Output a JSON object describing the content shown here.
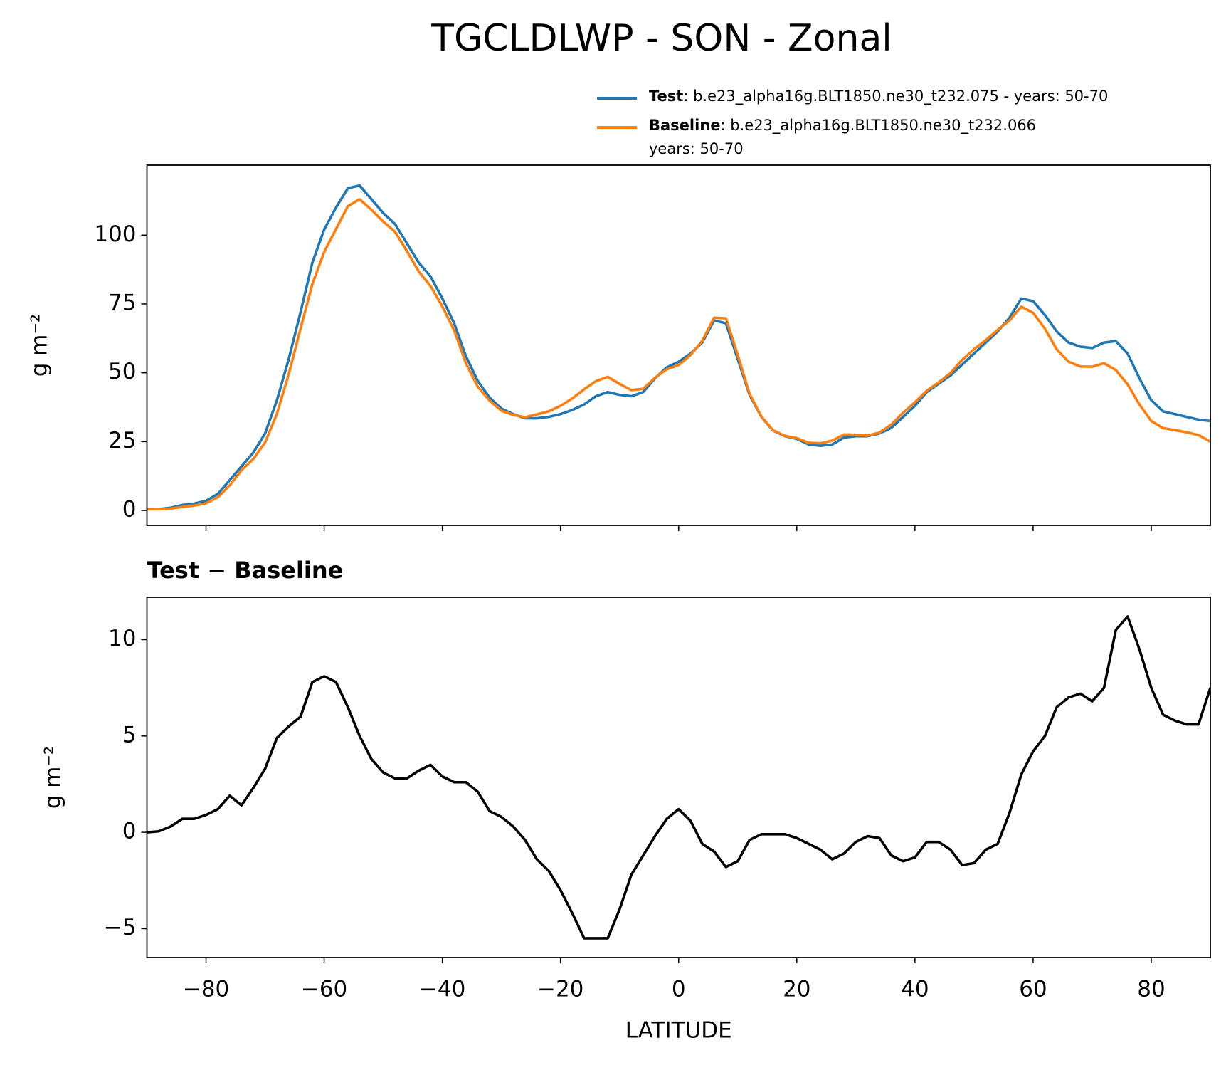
{
  "chart_data": [
    {
      "type": "line",
      "title": "TGCLDLWP - SON - Zonal",
      "ylabel": "g m⁻²",
      "x": [
        -90,
        -88,
        -86,
        -84,
        -82,
        -80,
        -78,
        -76,
        -74,
        -72,
        -70,
        -68,
        -66,
        -64,
        -62,
        -60,
        -58,
        -56,
        -54,
        -52,
        -50,
        -48,
        -46,
        -44,
        -42,
        -40,
        -38,
        -36,
        -34,
        -32,
        -30,
        -28,
        -26,
        -24,
        -22,
        -20,
        -18,
        -16,
        -14,
        -12,
        -10,
        -8,
        -6,
        -4,
        -2,
        0,
        2,
        4,
        6,
        8,
        10,
        12,
        14,
        16,
        18,
        20,
        22,
        24,
        26,
        28,
        30,
        32,
        34,
        36,
        38,
        40,
        42,
        44,
        46,
        48,
        50,
        52,
        54,
        56,
        58,
        60,
        62,
        64,
        66,
        68,
        70,
        72,
        74,
        76,
        78,
        80,
        82,
        84,
        86,
        88,
        90
      ],
      "series": [
        {
          "name": "Test",
          "legend_text": [
            ": b.e23_alpha16g.BLT1850.ne30_t232.075 - years: 50-70"
          ],
          "color": "#1f77b4",
          "values": [
            0.5,
            0.5,
            1,
            2,
            2.5,
            3.5,
            6,
            11,
            16,
            21,
            28,
            40,
            55,
            72,
            90,
            102,
            110,
            117,
            118,
            113,
            108,
            104,
            97,
            90,
            85,
            77,
            68,
            56,
            47,
            41,
            37,
            35,
            33.5,
            33.5,
            34,
            35,
            36.5,
            38.5,
            41.5,
            43,
            42,
            41.5,
            43,
            48,
            52,
            54,
            57,
            61,
            69,
            68,
            55,
            42,
            34,
            29,
            27,
            26,
            24,
            23.5,
            24,
            26.5,
            27,
            27,
            28,
            30,
            34,
            38,
            43,
            46,
            49,
            53,
            57,
            61,
            65,
            70,
            77,
            76,
            71,
            65,
            61,
            59.5,
            59,
            61,
            61.5,
            57,
            48,
            40,
            36,
            35,
            34,
            33,
            32.5
          ]
        },
        {
          "name": "Baseline",
          "legend_text": [
            ": b.e23_alpha16g.BLT1850.ne30_t232.066",
            "years: 50-70"
          ],
          "color": "#ff7f0e",
          "values": [
            0.5,
            0.45,
            0.7,
            1.3,
            1.8,
            2.6,
            4.8,
            9.1,
            14.6,
            18.7,
            24.7,
            35.1,
            49.5,
            66,
            82.2,
            93.9,
            102.2,
            110.5,
            113,
            109.2,
            104.9,
            101.2,
            94.2,
            86.8,
            81.5,
            74.1,
            65.4,
            53.4,
            44.9,
            39.9,
            36.2,
            34.7,
            33.9,
            34.9,
            36,
            38,
            40.7,
            44,
            47,
            48.5,
            46,
            43.7,
            44.2,
            48.2,
            51.3,
            52.8,
            56.4,
            61.6,
            70,
            69.8,
            56.5,
            42.4,
            34.1,
            29.1,
            27.1,
            26.3,
            24.6,
            24.4,
            25.4,
            27.6,
            27.5,
            27.2,
            28.3,
            31.2,
            35.5,
            39.3,
            43.5,
            46.5,
            49.9,
            54.7,
            58.6,
            61.9,
            65.6,
            69,
            74,
            71.8,
            66,
            58.5,
            54,
            52.3,
            52.2,
            53.5,
            51,
            45.8,
            38.5,
            32.5,
            29.9,
            29.2,
            28.4,
            27.4,
            25
          ]
        }
      ],
      "xlim": [
        -90,
        90
      ],
      "xticks": [
        -80,
        -60,
        -40,
        -20,
        0,
        20,
        40,
        60,
        80
      ],
      "ylim": [
        -5.4,
        125.4
      ],
      "yticks": [
        0,
        25,
        50,
        75,
        100
      ]
    },
    {
      "type": "line",
      "subtitle": "Test − Baseline",
      "ylabel": "g m⁻²",
      "xlabel": "LATITUDE",
      "x": [
        -90,
        -88,
        -86,
        -84,
        -82,
        -80,
        -78,
        -76,
        -74,
        -72,
        -70,
        -68,
        -66,
        -64,
        -62,
        -60,
        -58,
        -56,
        -54,
        -52,
        -50,
        -48,
        -46,
        -44,
        -42,
        -40,
        -38,
        -36,
        -34,
        -32,
        -30,
        -28,
        -26,
        -24,
        -22,
        -20,
        -18,
        -16,
        -14,
        -12,
        -10,
        -8,
        -6,
        -4,
        -2,
        0,
        2,
        4,
        6,
        8,
        10,
        12,
        14,
        16,
        18,
        20,
        22,
        24,
        26,
        28,
        30,
        32,
        34,
        36,
        38,
        40,
        42,
        44,
        46,
        48,
        50,
        52,
        54,
        56,
        58,
        60,
        62,
        64,
        66,
        68,
        70,
        72,
        74,
        76,
        78,
        80,
        82,
        84,
        86,
        88,
        90
      ],
      "series": [
        {
          "color": "#000000",
          "values": [
            0,
            0.05,
            0.3,
            0.7,
            0.7,
            0.9,
            1.2,
            1.9,
            1.4,
            2.3,
            3.3,
            4.9,
            5.5,
            6.0,
            7.8,
            8.1,
            7.8,
            6.5,
            5.0,
            3.8,
            3.1,
            2.8,
            2.8,
            3.2,
            3.5,
            2.9,
            2.6,
            2.6,
            2.1,
            1.1,
            0.8,
            0.3,
            -0.4,
            -1.4,
            -2.0,
            -3.0,
            -4.2,
            -5.5,
            -5.5,
            -5.5,
            -4.0,
            -2.2,
            -1.2,
            -0.2,
            0.7,
            1.2,
            0.6,
            -0.6,
            -1.0,
            -1.8,
            -1.5,
            -0.4,
            -0.1,
            -0.1,
            -0.1,
            -0.3,
            -0.6,
            -0.9,
            -1.4,
            -1.1,
            -0.5,
            -0.2,
            -0.3,
            -1.2,
            -1.5,
            -1.3,
            -0.5,
            -0.5,
            -0.9,
            -1.7,
            -1.6,
            -0.9,
            -0.6,
            1.0,
            3.0,
            4.2,
            5.0,
            6.5,
            7.0,
            7.2,
            6.8,
            7.5,
            10.5,
            11.2,
            9.5,
            7.5,
            6.1,
            5.8,
            5.6,
            5.6,
            7.5
          ]
        }
      ],
      "xlim": [
        -90,
        90
      ],
      "xticks": [
        {
          "value": -80,
          "label": "−80"
        },
        {
          "value": -60,
          "label": "−60"
        },
        {
          "value": -40,
          "label": "−40"
        },
        {
          "value": -20,
          "label": "−20"
        },
        0,
        20,
        40,
        60,
        80
      ],
      "ylim": [
        -6.5,
        12.2
      ],
      "yticks": [
        {
          "value": -5,
          "label": "−5"
        },
        0,
        5,
        10
      ]
    }
  ]
}
